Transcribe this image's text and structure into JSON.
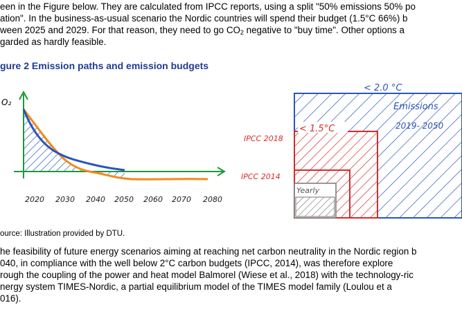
{
  "intro": {
    "line1": "een in the Figure below. They are calculated from IPCC reports, using a split \"50% emissions 50% po",
    "line2": "ation\". In the business-as-usual scenario the Nordic countries will spend their budget (1.5°C 66%) b",
    "line3_pre": "ween 2025 and 2029. For that reason, they need to go CO",
    "line3_sub": "2",
    "line3_post": " negative to \"buy time\". Other options a",
    "line4": "garded as hardly feasible."
  },
  "figure": {
    "title": "gure 2  Emission paths and emission budgets",
    "y_label": "O₂",
    "x_ticks": [
      "2020",
      "2030",
      "2040",
      "2050",
      "2060",
      "2070",
      "2080"
    ],
    "labels": {
      "below_2c": "< 2.0 °C",
      "emissions": "Emissions",
      "period": "2019- 2050",
      "below_15c": "< 1.5°C",
      "ipcc2018": "IPCC 2018",
      "ipcc2014": "IPCC 2014",
      "yearly": "Yearly"
    },
    "colors": {
      "blue": "#2b55b8",
      "red": "#d62b2b",
      "orange": "#f08a1c",
      "green": "#1a9a3a",
      "gray": "#777777"
    }
  },
  "source": "ource: Illustration provided by DTU.",
  "body": {
    "line1": "he feasibility of future energy scenarios aiming at reaching net carbon neutrality in the Nordic region b",
    "line2": "040, in compliance with the well below 2°C carbon budgets (IPCC, 2014), was therefore explore",
    "line3": "rough the coupling of the power and heat model Balmorel (Wiese et al., 2018) with the technology-ric",
    "line4": "nergy system TIMES-Nordic, a partial equilibrium model of the TIMES model family (Loulou et a",
    "line5": "016)."
  }
}
